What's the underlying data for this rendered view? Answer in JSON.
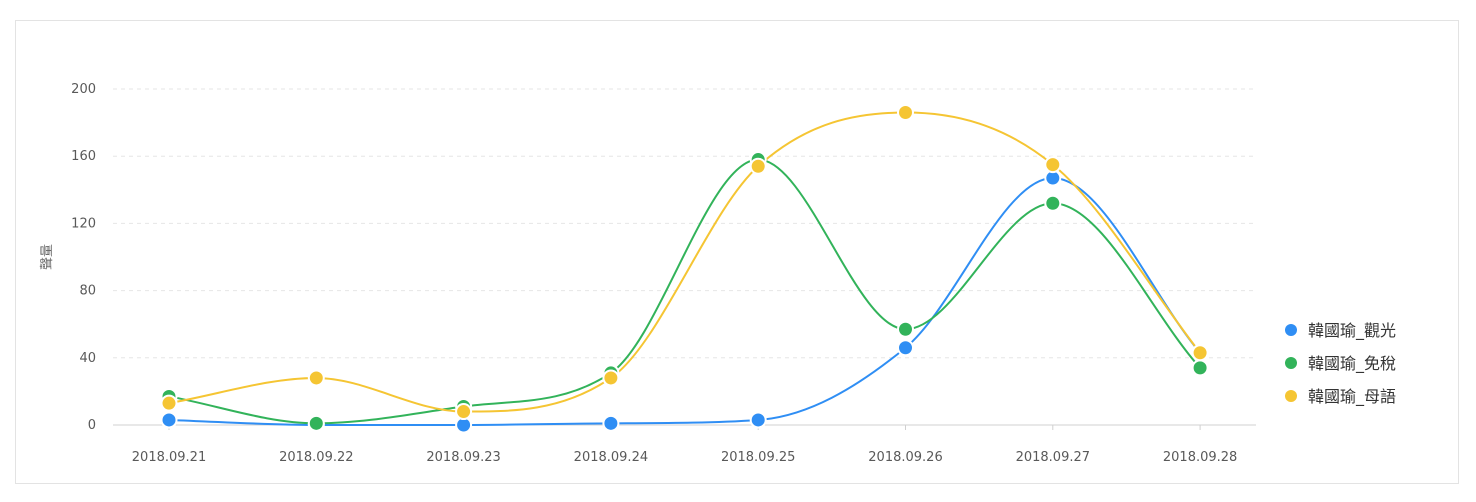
{
  "chart_data": {
    "type": "line",
    "smooth": true,
    "ylabel": "聲量",
    "ylim": [
      0,
      200
    ],
    "yticks": [
      0,
      40,
      80,
      120,
      160,
      200
    ],
    "grid": true,
    "legend_position": "right",
    "categories": [
      "2018.09.21",
      "2018.09.22",
      "2018.09.23",
      "2018.09.24",
      "2018.09.25",
      "2018.09.26",
      "2018.09.27",
      "2018.09.28"
    ],
    "series": [
      {
        "name": "韓國瑜_觀光",
        "color": "#2f8ef4",
        "values": [
          3,
          0,
          0,
          1,
          3,
          46,
          147,
          43
        ]
      },
      {
        "name": "韓國瑜_免稅",
        "color": "#32b35a",
        "values": [
          17,
          1,
          11,
          31,
          158,
          57,
          132,
          34
        ]
      },
      {
        "name": "韓國瑜_母語",
        "color": "#f5c533",
        "values": [
          13,
          28,
          8,
          28,
          154,
          186,
          155,
          43
        ]
      }
    ]
  }
}
